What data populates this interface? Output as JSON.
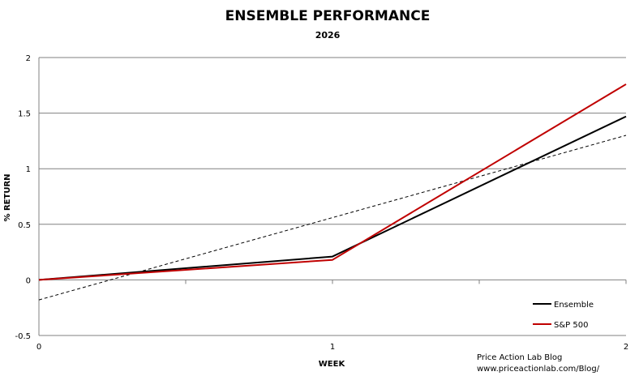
{
  "chart_data": {
    "type": "line",
    "title": "ENSEMBLE PERFORMANCE",
    "subtitle": "2026",
    "xlabel": "WEEK",
    "ylabel": "% RETURN",
    "x": [
      0,
      1,
      2
    ],
    "x_ticks": [
      "0",
      "1",
      "2"
    ],
    "xlim": [
      0,
      2
    ],
    "ylim": [
      -0.5,
      2
    ],
    "y_ticks": [
      "2",
      "1.5",
      "1",
      "0.5",
      "0",
      "-0.5"
    ],
    "y_tick_values": [
      2,
      1.5,
      1,
      0.5,
      0,
      -0.5
    ],
    "grid": true,
    "legend_position": "bottom-right",
    "series": [
      {
        "name": "Ensemble",
        "color": "#000000",
        "values": [
          0,
          0.21,
          1.47
        ]
      },
      {
        "name": "S&P 500",
        "color": "#c00000",
        "values": [
          0,
          0.18,
          1.76
        ]
      }
    ],
    "trendline": {
      "color": "#000000",
      "style": "dashed",
      "start": [
        0,
        -0.18
      ],
      "end": [
        2,
        1.3
      ]
    }
  },
  "credit": {
    "line1": "Price Action Lab Blog",
    "line2": "www.priceactionlab.com/Blog/"
  }
}
